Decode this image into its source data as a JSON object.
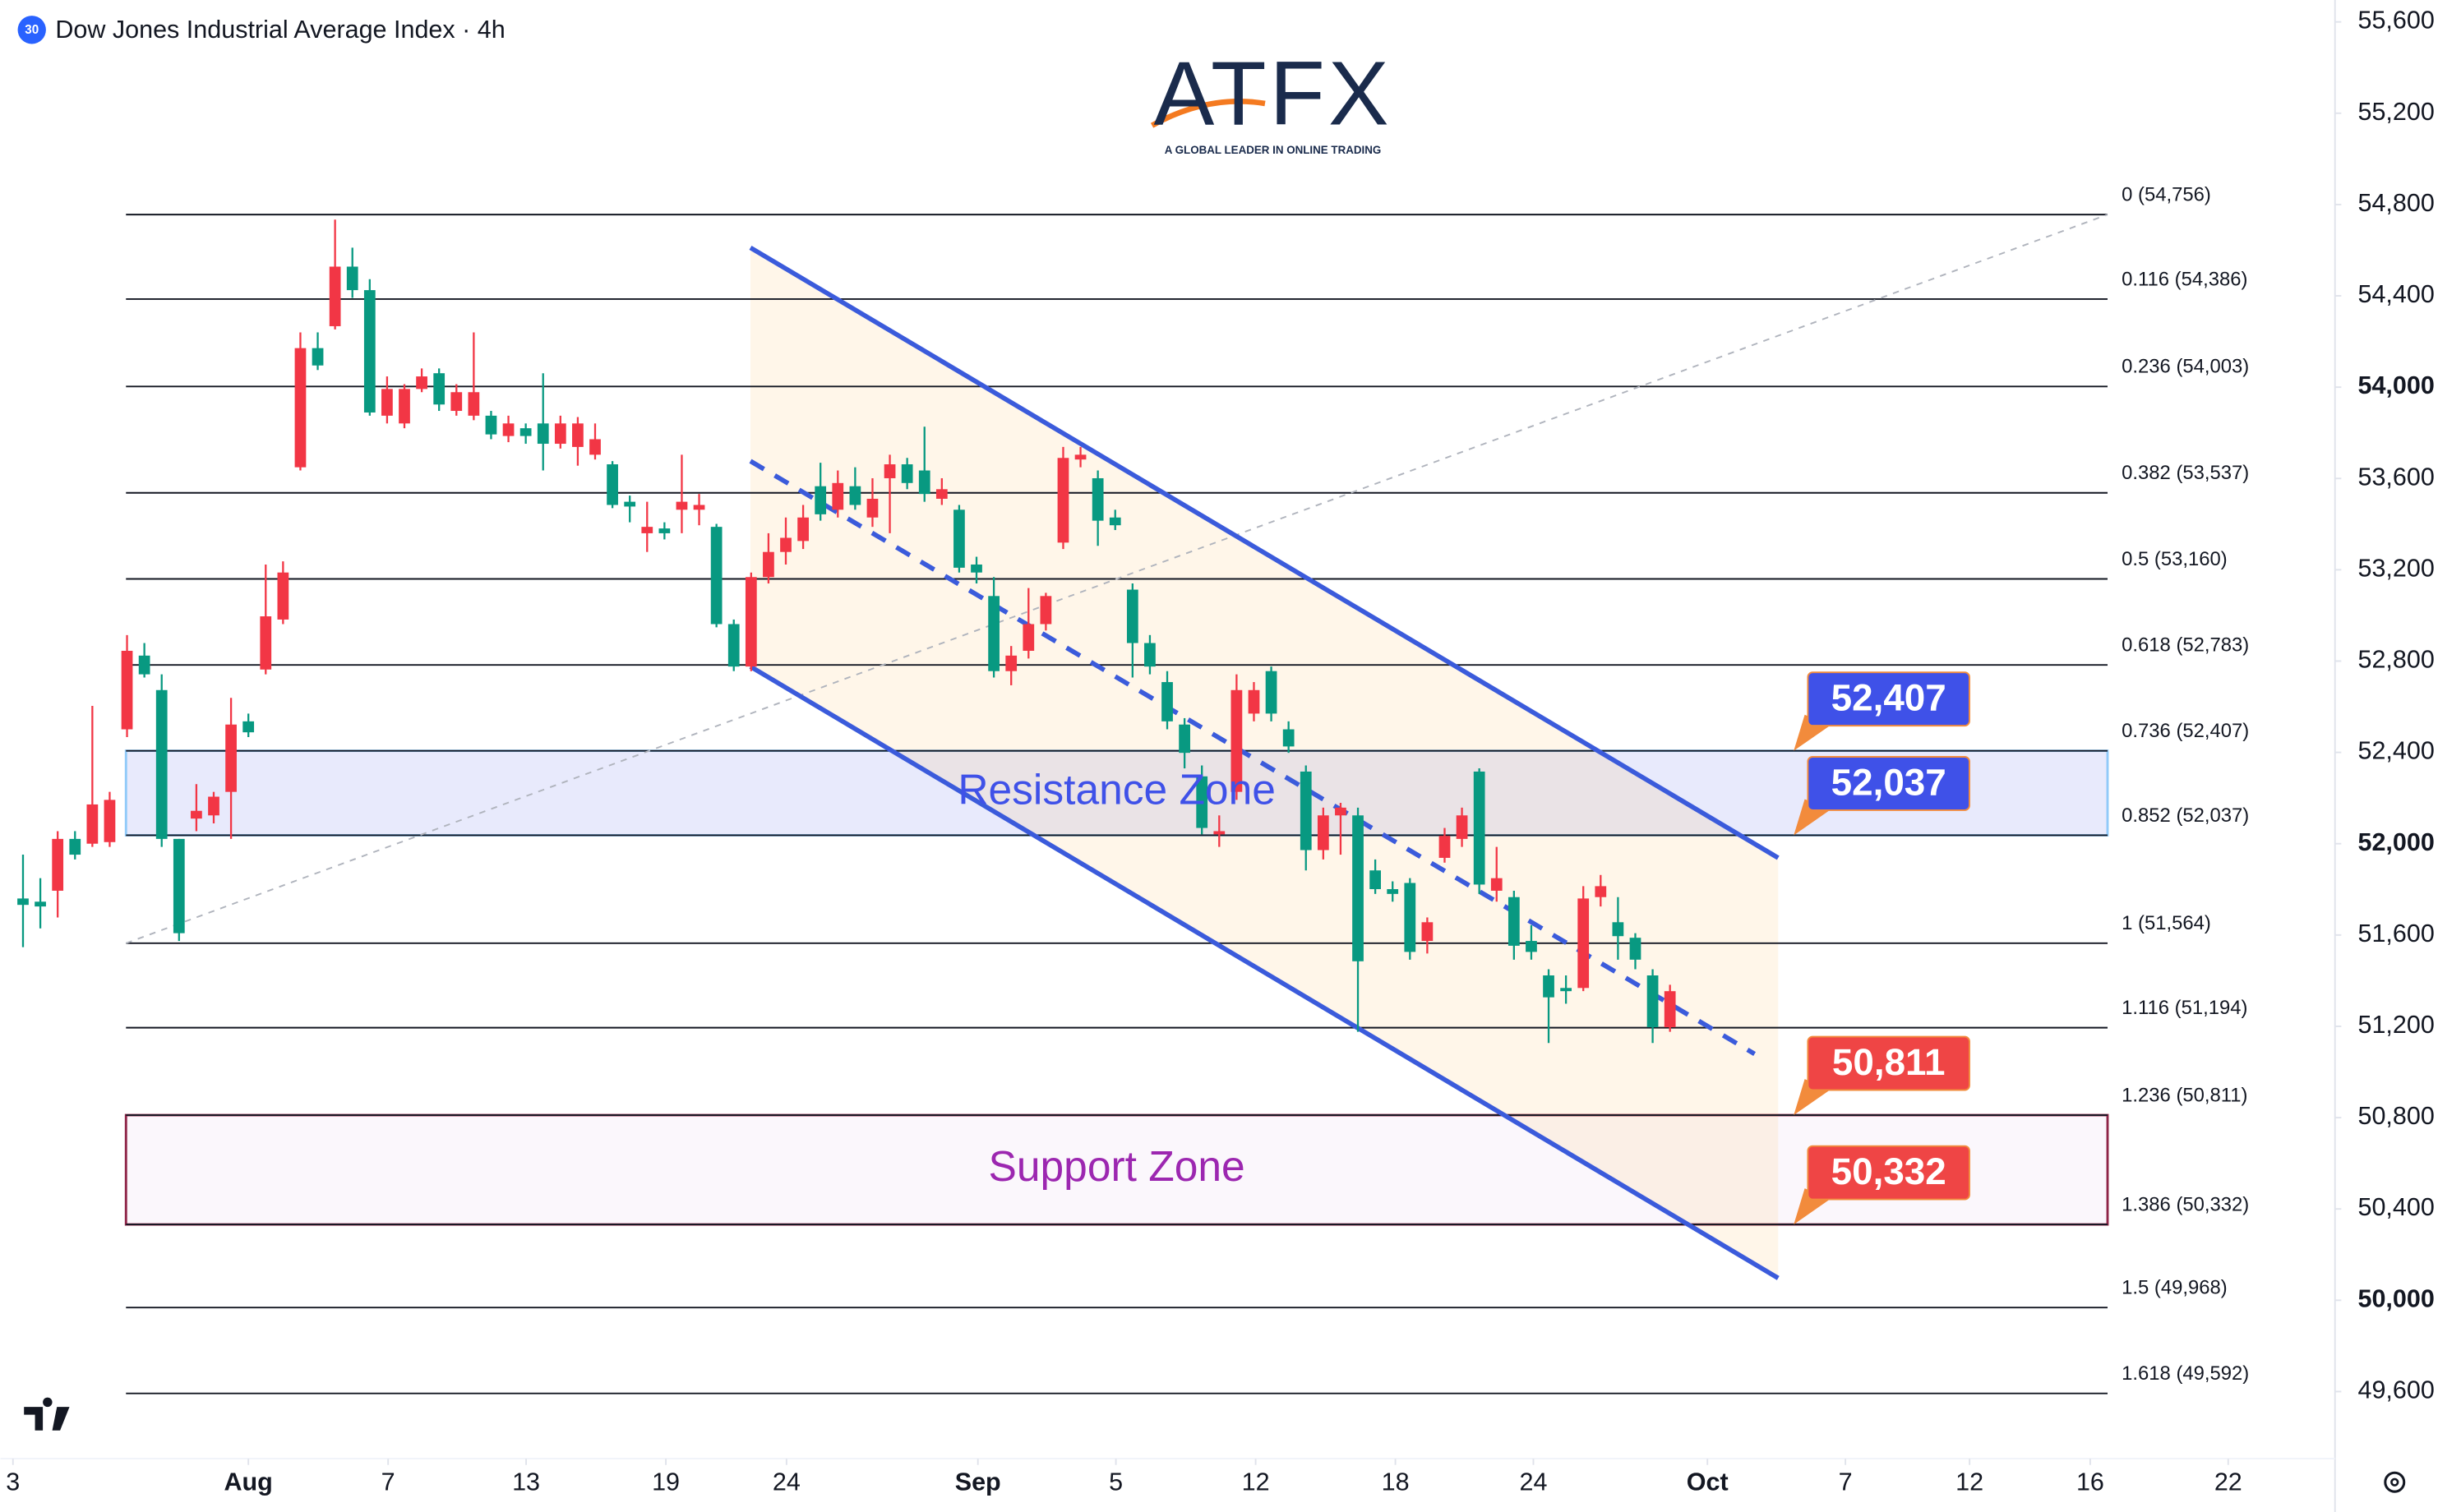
{
  "header": {
    "badge": "30",
    "title": "Dow Jones Industrial Average Index · 4h"
  },
  "logo": {
    "name": "ATFX",
    "tagline": "A GLOBAL LEADER IN ONLINE TRADING"
  },
  "chart_data": {
    "type": "candlestick",
    "up_color": "#089981",
    "down_color": "#f23645",
    "x": [
      -6.5,
      -6,
      -5.5,
      -5,
      -4.5,
      -4,
      -3.5,
      -3,
      -2.5,
      -2,
      -1.5,
      -1,
      -0.5,
      0,
      0.5,
      1,
      1.5,
      2,
      2.5,
      3,
      3.5,
      4,
      4.5,
      5,
      5.5,
      6,
      6.5,
      7,
      7.5,
      8,
      8.5,
      9,
      9.5,
      10,
      10.5,
      11,
      11.5,
      12,
      12.5,
      13,
      13.5,
      14,
      14.5,
      15,
      15.5,
      16,
      16.5,
      17,
      17.5,
      18,
      18.5,
      19,
      19.5,
      20,
      20.5,
      21,
      21.5,
      22,
      22.5,
      23,
      23.5,
      24,
      24.5,
      25,
      25.5,
      26,
      26.5,
      27,
      27.5,
      28,
      28.5,
      29,
      29.5,
      30,
      30.5,
      31,
      31.5,
      32,
      32.5,
      33,
      33.5,
      34,
      34.5,
      35,
      35.5,
      36,
      36.5,
      37,
      37.5,
      38,
      38.5,
      39,
      39.5,
      40,
      40.5,
      41
    ],
    "open": [
      51732,
      51725,
      52021,
      51952,
      52172,
      52192,
      52845,
      52742,
      52021,
      51608,
      52144,
      52206,
      52522,
      52488,
      52996,
      53188,
      54171,
      54095,
      54528,
      54425,
      53889,
      53992,
      53992,
      54047,
      53924,
      53978,
      53978,
      53793,
      53841,
      53786,
      53752,
      53841,
      53841,
      53772,
      53484,
      53477,
      53388,
      53360,
      53498,
      53484,
      52962,
      52776,
      53168,
      53278,
      53340,
      53429,
      53443,
      53580,
      53484,
      53511,
      53662,
      53580,
      53532,
      53553,
      53209,
      53188,
      52756,
      52824,
      52962,
      53085,
      53690,
      53704,
      53415,
      53395,
      52879,
      52776,
      52536,
      52398,
      52069,
      52055,
      52673,
      52673,
      52570,
      52426,
      51972,
      52124,
      52158,
      51485,
      51801,
      51780,
      51526,
      51656,
      52034,
      52124,
      51821,
      51849,
      51553,
      51526,
      51327,
      51354,
      51760,
      51814,
      51595,
      51492,
      51196,
      51354
    ],
    "high": [
      51952,
      51849,
      52055,
      52055,
      52604,
      52227,
      52914,
      52879,
      52742,
      52021,
      52261,
      52227,
      52639,
      52570,
      53223,
      53237,
      54240,
      54240,
      54734,
      54611,
      54473,
      54047,
      54013,
      54082,
      54082,
      54013,
      54240,
      53896,
      53875,
      53841,
      54061,
      53875,
      53869,
      53841,
      53676,
      53525,
      53498,
      53408,
      53704,
      53532,
      53401,
      52982,
      53188,
      53360,
      53429,
      53484,
      53669,
      53635,
      53649,
      53601,
      53704,
      53690,
      53827,
      53601,
      53484,
      53257,
      53168,
      52866,
      53120,
      53099,
      53738,
      53738,
      53635,
      53463,
      53140,
      52914,
      52756,
      52550,
      52343,
      52124,
      52742,
      52708,
      52776,
      52536,
      52343,
      52158,
      52179,
      52158,
      51931,
      51835,
      51849,
      51677,
      52069,
      52158,
      52330,
      51986,
      51794,
      51643,
      51450,
      51423,
      51814,
      51863,
      51766,
      51608,
      51450,
      51382
    ],
    "low": [
      51547,
      51629,
      51677,
      51931,
      51986,
      51986,
      52467,
      52728,
      51986,
      51574,
      52055,
      52089,
      52021,
      52467,
      52742,
      52962,
      53635,
      54075,
      54253,
      54391,
      53875,
      53841,
      53820,
      53978,
      53896,
      53875,
      53855,
      53772,
      53759,
      53752,
      53635,
      53731,
      53656,
      53683,
      53470,
      53408,
      53278,
      53333,
      53360,
      53395,
      52948,
      52756,
      52756,
      53140,
      53223,
      53291,
      53415,
      53429,
      53463,
      53388,
      53360,
      53553,
      53498,
      53484,
      53188,
      53140,
      52728,
      52694,
      52811,
      52934,
      53291,
      53649,
      53305,
      53374,
      52728,
      52742,
      52501,
      52330,
      52041,
      51986,
      52192,
      52536,
      52536,
      52398,
      51883,
      51931,
      51952,
      51176,
      51780,
      51746,
      51492,
      51519,
      51917,
      51986,
      51780,
      51746,
      51492,
      51492,
      51127,
      51299,
      51354,
      51725,
      51492,
      51450,
      51127,
      51176
    ],
    "close": [
      51760,
      51746,
      51794,
      52021,
      52000,
      52007,
      52501,
      52824,
      52673,
      52021,
      52110,
      52124,
      52227,
      52536,
      52763,
      52982,
      53649,
      54171,
      54267,
      54528,
      54425,
      53875,
      53841,
      53992,
      54061,
      53896,
      53875,
      53875,
      53786,
      53820,
      53841,
      53752,
      53738,
      53704,
      53662,
      53498,
      53360,
      53381,
      53463,
      53463,
      53388,
      52962,
      52776,
      53168,
      53278,
      53326,
      53566,
      53463,
      53566,
      53429,
      53601,
      53662,
      53635,
      53511,
      53463,
      53223,
      53085,
      52756,
      52845,
      52962,
      53319,
      53683,
      53601,
      53429,
      53113,
      52879,
      52708,
      52522,
      52295,
      52041,
      52227,
      52570,
      52756,
      52501,
      52316,
      51972,
      52124,
      52124,
      51883,
      51801,
      51828,
      51574,
      51938,
      52021,
      52316,
      51794,
      51766,
      51574,
      51423,
      51368,
      51368,
      51766,
      51656,
      51588,
      51423,
      51196
    ],
    "xlim": [
      -7.15,
      60.18
    ],
    "xticks": [
      {
        "value": -6.79,
        "label": "3"
      },
      {
        "value": 0,
        "label": "Aug"
      },
      {
        "value": 4.03,
        "label": "7"
      },
      {
        "value": 8.01,
        "label": "13"
      },
      {
        "value": 12.04,
        "label": "19"
      },
      {
        "value": 15.52,
        "label": "24"
      },
      {
        "value": 21.04,
        "label": "Sep"
      },
      {
        "value": 25.02,
        "label": "5"
      },
      {
        "value": 29.05,
        "label": "12"
      },
      {
        "value": 33.08,
        "label": "18"
      },
      {
        "value": 37.06,
        "label": "24"
      },
      {
        "value": 42.08,
        "label": "Oct"
      },
      {
        "value": 46.06,
        "label": "7"
      },
      {
        "value": 49.64,
        "label": "12"
      },
      {
        "value": 53.12,
        "label": "16"
      },
      {
        "value": 57.1,
        "label": "22"
      }
    ],
    "ylim": [
      49306,
      55696
    ],
    "yticks": [
      {
        "value": 55600,
        "label": "55,600"
      },
      {
        "value": 55200,
        "label": "55,200"
      },
      {
        "value": 54800,
        "label": "54,800"
      },
      {
        "value": 54400,
        "label": "54,400"
      },
      {
        "value": 54000,
        "label": "54,000"
      },
      {
        "value": 53600,
        "label": "53,600"
      },
      {
        "value": 53200,
        "label": "53,200"
      },
      {
        "value": 52800,
        "label": "52,800"
      },
      {
        "value": 52400,
        "label": "52,400"
      },
      {
        "value": 52000,
        "label": "52,000"
      },
      {
        "value": 51600,
        "label": "51,600"
      },
      {
        "value": 51200,
        "label": "51,200"
      },
      {
        "value": 50800,
        "label": "50,800"
      },
      {
        "value": 50400,
        "label": "50,400"
      },
      {
        "value": 50000,
        "label": "50,000"
      },
      {
        "value": 49600,
        "label": "49,600"
      }
    ],
    "fib_x": [
      -3.53,
      53.62
    ],
    "fib_levels": [
      {
        "value": 54756,
        "label": "0 (54,756)"
      },
      {
        "value": 54386,
        "label": "0.116 (54,386)"
      },
      {
        "value": 54003,
        "label": "0.236 (54,003)"
      },
      {
        "value": 53537,
        "label": "0.382 (53,537)"
      },
      {
        "value": 53160,
        "label": "0.5 (53,160)"
      },
      {
        "value": 52783,
        "label": "0.618 (52,783)"
      },
      {
        "value": 52407,
        "label": "0.736 (52,407)"
      },
      {
        "value": 52037,
        "label": "0.852 (52,037)"
      },
      {
        "value": 51564,
        "label": "1 (51,564)"
      },
      {
        "value": 51194,
        "label": "1.116 (51,194)"
      },
      {
        "value": 50811,
        "label": "1.236 (50,811)"
      },
      {
        "value": 50332,
        "label": "1.386 (50,332)"
      },
      {
        "value": 49968,
        "label": "1.5 (49,968)"
      },
      {
        "value": 49592,
        "label": "1.618 (49,592)"
      }
    ],
    "trend_line": {
      "x": [
        -3.53,
        53.62
      ],
      "y": [
        51564,
        54756
      ]
    },
    "zones": [
      {
        "name": "Resistance Zone",
        "from": 52037,
        "to": 52407,
        "color": "#3f51e8"
      },
      {
        "name": "Support Zone",
        "from": 50332,
        "to": 50811,
        "color": "#9c27b0"
      }
    ],
    "channel": {
      "upper": {
        "x": [
          14.48,
          44.12
        ],
        "y": [
          54611,
          51938
        ]
      },
      "lower": {
        "x": [
          14.48,
          44.12
        ],
        "y": [
          52776,
          50097
        ]
      },
      "middle": {
        "x": [
          14.48,
          43.44
        ],
        "y": [
          53676,
          51079
        ]
      },
      "color": "#3b5bdb"
    },
    "price_labels": [
      {
        "value": 52407,
        "label": "52,407",
        "color": "#3f51e8"
      },
      {
        "value": 52037,
        "label": "52,037",
        "color": "#3f51e8"
      },
      {
        "value": 50811,
        "label": "50,811",
        "color": "#ef4545"
      },
      {
        "value": 50332,
        "label": "50,332",
        "color": "#ef4545"
      }
    ]
  }
}
